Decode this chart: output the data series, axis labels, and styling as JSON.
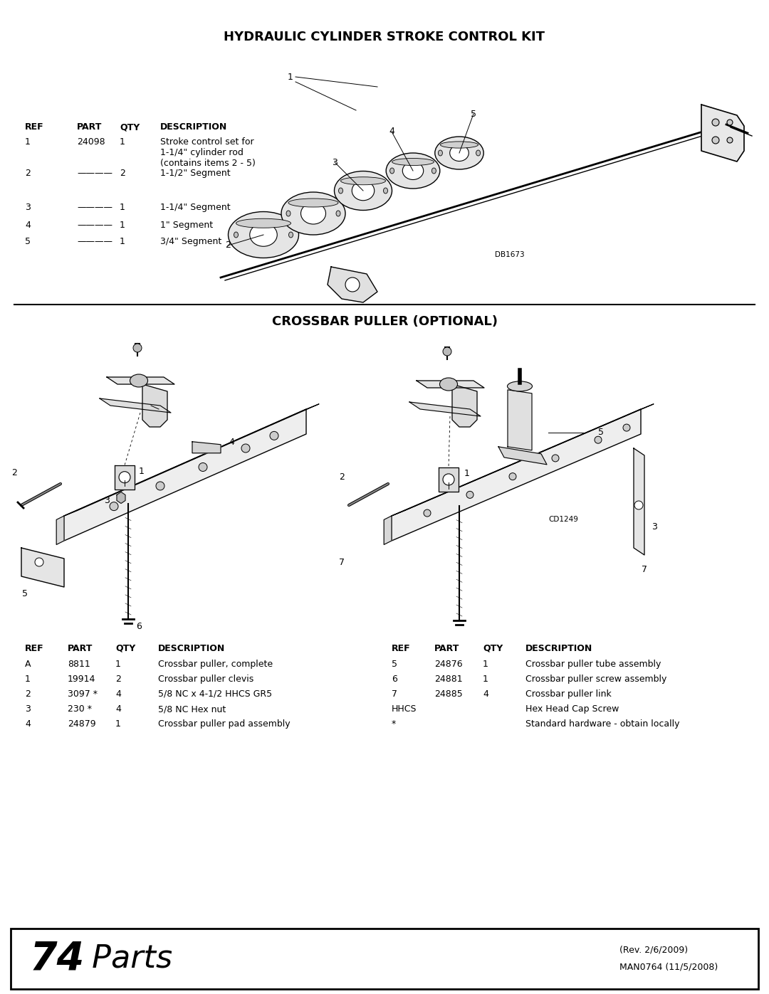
{
  "bg_color": "#ffffff",
  "title1": "HYDRAULIC CYLINDER STROKE CONTROL KIT",
  "title2": "CROSSBAR PULLER (OPTIONAL)",
  "footer_page": "74",
  "footer_label": " Parts",
  "footer_rev": "(Rev. 2/6/2009)",
  "footer_man": "MAN0764 (11/5/2008)",
  "kit_table_headers": [
    "REF",
    "PART",
    "QTY",
    "DESCRIPTION"
  ],
  "kit_table_rows": [
    [
      "1",
      "24098",
      "1",
      "Stroke control set for\n1-1/4\" cylinder rod\n(contains items 2 - 5)"
    ],
    [
      "2",
      "————",
      "2",
      "1-1/2\" Segment"
    ],
    [
      "3",
      "————",
      "1",
      "1-1/4\" Segment"
    ],
    [
      "4",
      "————",
      "1",
      "1\" Segment"
    ],
    [
      "5",
      "————",
      "1",
      "3/4\" Segment"
    ]
  ],
  "crossbar_table_headers": [
    "REF",
    "PART",
    "QTY",
    "DESCRIPTION"
  ],
  "crossbar_left_rows": [
    [
      "A",
      "8811",
      "1",
      "Crossbar puller, complete"
    ],
    [
      "1",
      "19914",
      "2",
      "Crossbar puller clevis"
    ],
    [
      "2",
      "3097 *",
      "4",
      "5/8 NC x 4-1/2 HHCS GR5"
    ],
    [
      "3",
      "230 *",
      "4",
      "5/8 NC Hex nut"
    ],
    [
      "4",
      "24879",
      "1",
      "Crossbar puller pad assembly"
    ]
  ],
  "crossbar_right_rows": [
    [
      "5",
      "24876",
      "1",
      "Crossbar puller tube assembly"
    ],
    [
      "6",
      "24881",
      "1",
      "Crossbar puller screw assembly"
    ],
    [
      "7",
      "24885",
      "4",
      "Crossbar puller link"
    ],
    [
      "HHCS",
      "",
      "",
      "Hex Head Cap Screw"
    ],
    [
      "*",
      "",
      "",
      "Standard hardware - obtain locally"
    ]
  ],
  "db_label": "DB1673",
  "cd_label": "CD1249"
}
